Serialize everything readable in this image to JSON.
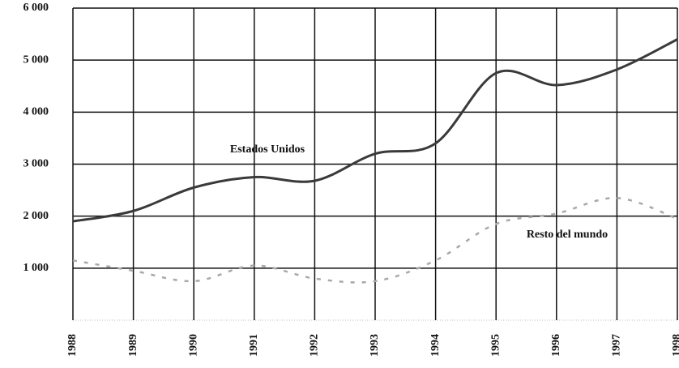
{
  "chart_data": {
    "type": "line",
    "categories": [
      "1988",
      "1989",
      "1990",
      "1991",
      "1992",
      "1993",
      "1994",
      "1995",
      "1996",
      "1997",
      "1998"
    ],
    "series": [
      {
        "name": "Estados Unidos",
        "color": "#3a3a3a",
        "values": [
          1900,
          2100,
          2550,
          2750,
          2680,
          3200,
          3400,
          4750,
          4520,
          4820,
          5400
        ]
      },
      {
        "name": "Resto del mundo",
        "color": "#a8a8a8",
        "values": [
          1150,
          950,
          750,
          1050,
          800,
          750,
          1150,
          1850,
          2050,
          2350,
          1950
        ]
      }
    ],
    "ylim": [
      0,
      6000
    ],
    "yticks": [
      {
        "value": 1000,
        "label": "1 000"
      },
      {
        "value": 2000,
        "label": "2 000"
      },
      {
        "value": 3000,
        "label": "3 000"
      },
      {
        "value": 4000,
        "label": "4 000"
      },
      {
        "value": 5000,
        "label": "5 000"
      },
      {
        "value": 6000,
        "label": "6 000"
      }
    ],
    "grid": true
  }
}
